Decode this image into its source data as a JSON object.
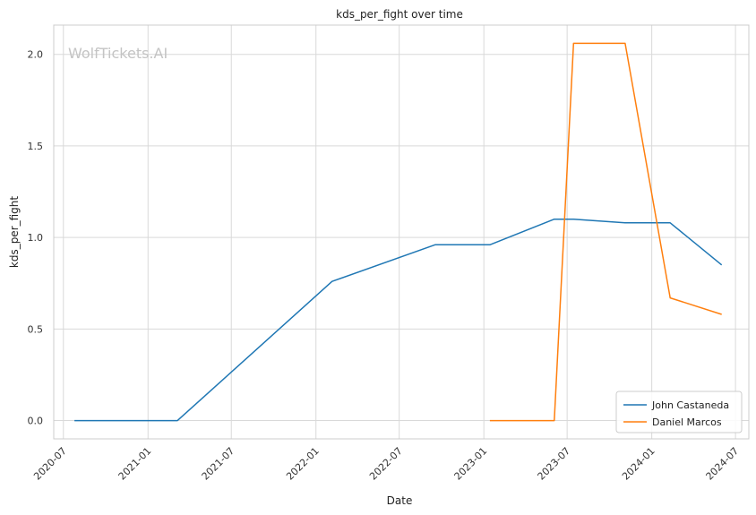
{
  "chart_data": {
    "type": "line",
    "title": "kds_per_fight over time",
    "xlabel": "Date",
    "ylabel": "kds_per_fight",
    "watermark": "WolfTickets.AI",
    "x_ticks": [
      "2020-07",
      "2021-01",
      "2021-07",
      "2022-01",
      "2022-07",
      "2023-01",
      "2023-07",
      "2024-01",
      "2024-07"
    ],
    "y_ticks": [
      "0.0",
      "0.5",
      "1.0",
      "1.5",
      "2.0"
    ],
    "xlim": [
      "2020-06-10",
      "2024-07-30"
    ],
    "ylim": [
      -0.1,
      2.16
    ],
    "grid": true,
    "legend_position": "bottom-right",
    "colors": {
      "John Castaneda": "#1f77b4",
      "Daniel Marcos": "#ff7f0e"
    },
    "series": [
      {
        "name": "John Castaneda",
        "x": [
          "2020-07-25",
          "2021-03-06",
          "2022-02-05",
          "2022-09-17",
          "2023-01-14",
          "2023-06-03",
          "2023-07-15",
          "2023-11-04",
          "2024-02-10",
          "2024-06-01"
        ],
        "y": [
          0.0,
          0.0,
          0.76,
          0.96,
          0.96,
          1.1,
          1.1,
          1.08,
          1.08,
          0.85
        ]
      },
      {
        "name": "Daniel Marcos",
        "x": [
          "2023-01-14",
          "2023-06-03",
          "2023-07-15",
          "2023-11-04",
          "2024-02-10",
          "2024-06-01"
        ],
        "y": [
          0.0,
          0.0,
          2.06,
          2.06,
          0.67,
          0.58
        ]
      }
    ]
  }
}
